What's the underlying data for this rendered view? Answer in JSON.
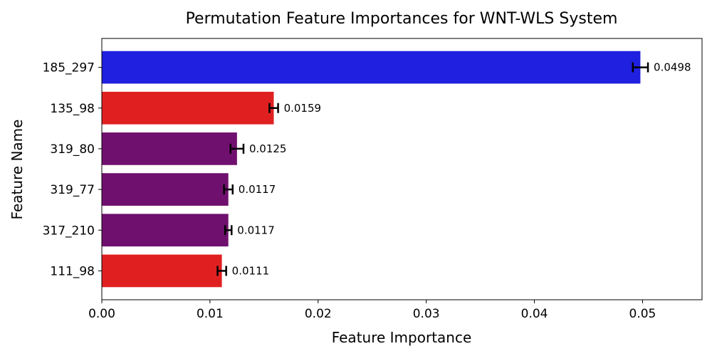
{
  "chart_data": {
    "type": "bar",
    "orientation": "horizontal",
    "title": "Permutation Feature Importances for WNT-WLS System",
    "xlabel": "Feature Importance",
    "ylabel": "Feature Name",
    "xlim": [
      0,
      0.0555
    ],
    "xticks": [
      0.0,
      0.01,
      0.02,
      0.03,
      0.04,
      0.05
    ],
    "xtick_labels": [
      "0.00",
      "0.01",
      "0.02",
      "0.03",
      "0.04",
      "0.05"
    ],
    "grid": false,
    "legend": "none",
    "categories": [
      "185_297",
      "135_98",
      "319_80",
      "319_77",
      "317_210",
      "111_98"
    ],
    "values": [
      0.0498,
      0.0159,
      0.0125,
      0.0117,
      0.0117,
      0.0111
    ],
    "value_labels": [
      "0.0498",
      "0.0159",
      "0.0125",
      "0.0117",
      "0.0117",
      "0.0111"
    ],
    "errors": [
      0.0007,
      0.0004,
      0.0006,
      0.0004,
      0.0003,
      0.0004
    ],
    "colors": [
      "#2020e0",
      "#e02020",
      "#70106e",
      "#70106e",
      "#70106e",
      "#e02020"
    ]
  }
}
